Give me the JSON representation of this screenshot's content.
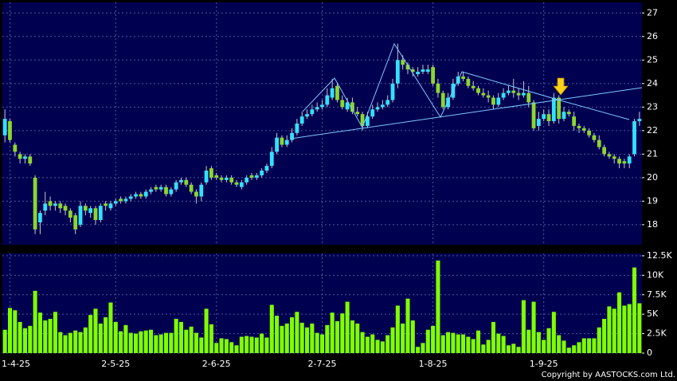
{
  "chart_data": [
    {
      "type": "candlestick",
      "categories": [
        null,
        "1-4-25",
        null,
        null,
        null,
        null,
        null,
        null,
        null,
        null,
        null,
        null,
        null,
        null,
        null,
        null,
        null,
        null,
        null,
        null,
        null,
        null,
        "2-5-25",
        null,
        null,
        null,
        null,
        null,
        null,
        null,
        null,
        null,
        null,
        null,
        null,
        null,
        null,
        null,
        null,
        null,
        null,
        null,
        "2-6-25",
        null,
        null,
        null,
        null,
        null,
        null,
        null,
        null,
        null,
        null,
        null,
        null,
        null,
        null,
        null,
        null,
        null,
        null,
        null,
        null,
        "2-7-25",
        null,
        null,
        null,
        null,
        null,
        null,
        null,
        null,
        null,
        null,
        null,
        null,
        null,
        null,
        null,
        null,
        null,
        null,
        null,
        null,
        null,
        "1-8-25",
        null,
        null,
        null,
        null,
        null,
        null,
        null,
        null,
        null,
        null,
        null,
        null,
        null,
        null,
        null,
        null,
        null,
        null,
        null,
        null,
        null,
        "1-9-25",
        null,
        null,
        null,
        null,
        null,
        null,
        null,
        null,
        null,
        null,
        null,
        null,
        null,
        null,
        null,
        null,
        null,
        null,
        null
      ],
      "open": [
        21.8,
        22.4,
        21.4,
        21.0,
        20.8,
        20.9,
        20.0,
        18.1,
        18.6,
        19.0,
        18.8,
        18.9,
        18.8,
        18.6,
        18.4,
        18.0,
        18.8,
        18.5,
        18.7,
        18.2,
        18.9,
        18.7,
        18.9,
        19.1,
        19.0,
        19.1,
        19.2,
        19.3,
        19.2,
        19.4,
        19.6,
        19.5,
        19.6,
        19.3,
        19.5,
        19.8,
        19.9,
        19.7,
        19.4,
        19.2,
        19.8,
        20.4,
        20.1,
        20.0,
        19.9,
        20.0,
        19.8,
        19.6,
        19.8,
        20.1,
        20.0,
        20.1,
        20.3,
        20.5,
        21.1,
        21.7,
        21.4,
        21.6,
        21.9,
        22.3,
        22.6,
        22.7,
        22.9,
        23.0,
        23.1,
        23.4,
        23.9,
        23.3,
        22.9,
        23.2,
        22.8,
        22.7,
        22.2,
        22.6,
        22.9,
        23.0,
        23.1,
        23.3,
        24.0,
        25.0,
        24.8,
        24.6,
        24.4,
        24.5,
        24.5,
        24.7,
        24.0,
        23.6,
        23.0,
        23.4,
        24.0,
        24.3,
        24.2,
        23.9,
        23.8,
        23.6,
        23.5,
        23.4,
        23.1,
        23.4,
        23.6,
        23.7,
        23.6,
        23.5,
        23.6,
        23.2,
        22.2,
        22.5,
        22.7,
        22.4,
        23.4,
        22.5,
        22.8,
        22.6,
        22.2,
        22.1,
        22.0,
        21.8,
        21.6,
        21.3,
        21.0,
        20.9,
        20.8,
        20.7,
        20.6,
        21.0,
        22.4
      ],
      "high": [
        22.9,
        22.5,
        21.5,
        21.1,
        21.0,
        21.0,
        20.1,
        18.6,
        19.4,
        19.2,
        19.0,
        19.0,
        18.9,
        18.7,
        18.5,
        19.0,
        18.9,
        18.8,
        18.8,
        18.9,
        19.0,
        19.0,
        19.1,
        19.2,
        19.2,
        19.3,
        19.4,
        19.4,
        19.5,
        19.6,
        19.7,
        19.7,
        19.7,
        19.6,
        19.9,
        20.0,
        20.0,
        19.8,
        19.5,
        19.8,
        20.5,
        20.5,
        20.2,
        20.1,
        20.1,
        20.1,
        19.9,
        19.9,
        20.1,
        20.2,
        20.2,
        20.4,
        20.6,
        21.3,
        21.9,
        21.8,
        21.8,
        22.1,
        22.5,
        22.8,
        22.9,
        23.1,
        23.2,
        23.3,
        23.8,
        24.2,
        24.0,
        23.5,
        23.4,
        23.4,
        23.0,
        22.8,
        22.8,
        23.1,
        23.2,
        23.3,
        23.5,
        24.2,
        25.7,
        25.2,
        24.9,
        24.7,
        24.7,
        24.8,
        24.8,
        24.8,
        24.2,
        23.7,
        23.6,
        24.2,
        24.5,
        24.5,
        24.3,
        24.1,
        23.9,
        23.8,
        23.7,
        23.5,
        23.6,
        23.8,
        23.9,
        24.2,
        23.8,
        24.1,
        23.9,
        23.3,
        22.8,
        22.9,
        22.9,
        23.6,
        23.5,
        23.0,
        22.9,
        22.8,
        22.3,
        22.2,
        22.1,
        21.9,
        21.8,
        21.4,
        21.1,
        21.0,
        20.9,
        20.8,
        21.0,
        22.5,
        22.8
      ],
      "low": [
        21.5,
        21.5,
        20.9,
        20.6,
        20.6,
        20.5,
        17.6,
        17.6,
        18.4,
        18.6,
        18.6,
        18.5,
        18.4,
        18.1,
        17.6,
        17.9,
        18.4,
        18.3,
        18.0,
        18.1,
        18.6,
        18.6,
        18.8,
        18.9,
        18.9,
        19.0,
        19.1,
        19.1,
        19.1,
        19.3,
        19.4,
        19.4,
        19.2,
        19.2,
        19.4,
        19.7,
        19.6,
        19.3,
        18.9,
        19.0,
        19.7,
        19.9,
        19.9,
        19.8,
        19.8,
        19.7,
        19.6,
        19.5,
        19.7,
        19.9,
        19.9,
        20.0,
        20.2,
        20.4,
        21.0,
        21.3,
        21.3,
        21.5,
        21.8,
        22.2,
        22.5,
        22.6,
        22.8,
        22.9,
        23.0,
        23.3,
        23.2,
        22.9,
        22.8,
        22.7,
        22.6,
        22.0,
        22.1,
        22.5,
        22.8,
        22.9,
        23.0,
        23.2,
        23.8,
        24.6,
        24.4,
        24.3,
        24.3,
        24.4,
        24.4,
        23.9,
        23.4,
        22.9,
        22.9,
        23.3,
        23.9,
        24.1,
        23.8,
        23.7,
        23.5,
        23.4,
        23.2,
        22.9,
        23.0,
        23.3,
        23.5,
        23.4,
        23.3,
        23.4,
        23.0,
        22.0,
        22.0,
        22.4,
        22.2,
        22.3,
        22.3,
        22.4,
        22.6,
        22.0,
        21.9,
        21.9,
        21.7,
        21.5,
        21.2,
        20.9,
        20.8,
        20.6,
        20.4,
        20.4,
        20.4,
        20.9,
        22.2
      ],
      "close": [
        22.5,
        21.6,
        21.1,
        20.8,
        20.9,
        20.6,
        17.8,
        18.5,
        18.9,
        18.8,
        18.9,
        18.7,
        18.6,
        18.3,
        17.8,
        18.8,
        18.6,
        18.7,
        18.2,
        18.8,
        18.8,
        18.9,
        19.0,
        19.0,
        19.1,
        19.2,
        19.3,
        19.2,
        19.4,
        19.5,
        19.5,
        19.6,
        19.3,
        19.5,
        19.8,
        19.9,
        19.7,
        19.4,
        19.2,
        19.7,
        20.3,
        20.0,
        20.0,
        19.9,
        20.0,
        19.8,
        19.7,
        19.8,
        20.0,
        20.0,
        20.1,
        20.3,
        20.5,
        21.1,
        21.7,
        21.4,
        21.6,
        21.9,
        22.3,
        22.6,
        22.7,
        22.9,
        23.0,
        23.1,
        23.5,
        23.8,
        23.3,
        23.0,
        23.2,
        22.8,
        22.7,
        22.2,
        22.6,
        22.9,
        23.0,
        23.1,
        23.3,
        24.0,
        25.0,
        24.8,
        24.6,
        24.5,
        24.5,
        24.6,
        24.6,
        24.0,
        23.6,
        23.0,
        23.4,
        24.0,
        24.3,
        24.2,
        23.9,
        23.8,
        23.6,
        23.5,
        23.4,
        23.1,
        23.4,
        23.6,
        23.7,
        23.6,
        23.5,
        23.6,
        23.2,
        22.1,
        22.5,
        22.7,
        22.4,
        23.4,
        22.5,
        22.8,
        22.7,
        22.2,
        22.1,
        22.0,
        21.8,
        21.6,
        21.3,
        21.0,
        20.9,
        20.8,
        20.6,
        20.6,
        20.9,
        22.4,
        22.5
      ],
      "up_color": "#33e0ff",
      "down_color": "#8cd630",
      "ylim": [
        17.15,
        27.45
      ],
      "yticks": [
        18,
        19,
        20,
        21,
        22,
        23,
        24,
        25,
        26,
        27
      ],
      "grid": true
    },
    {
      "type": "bar",
      "values": [
        3000,
        5800,
        5500,
        4000,
        3200,
        3500,
        8000,
        5200,
        4200,
        4400,
        5300,
        2700,
        2300,
        2600,
        2900,
        2700,
        3300,
        4900,
        5700,
        3800,
        4600,
        6500,
        4000,
        2800,
        3600,
        2600,
        2500,
        2800,
        2900,
        3000,
        2300,
        2400,
        2600,
        2600,
        4400,
        4000,
        3000,
        3400,
        2600,
        2000,
        5700,
        3700,
        1300,
        1900,
        1800,
        1400,
        1000,
        2100,
        2200,
        2100,
        2000,
        2500,
        2000,
        6200,
        4800,
        3500,
        3800,
        4600,
        5300,
        3900,
        3300,
        3800,
        2600,
        2400,
        3600,
        5200,
        4100,
        5100,
        6600,
        4200,
        3800,
        2700,
        2100,
        2400,
        1700,
        1500,
        2300,
        3300,
        6100,
        3800,
        7000,
        4200,
        800,
        1300,
        3000,
        3500,
        11900,
        2300,
        2700,
        2600,
        2400,
        2400,
        2100,
        1800,
        2900,
        1100,
        1700,
        4000,
        2500,
        2200,
        1000,
        1200,
        800,
        6800,
        3000,
        6600,
        2700,
        1700,
        3200,
        5300,
        2300,
        1600,
        700,
        1000,
        1400,
        1900,
        1900,
        1900,
        3300,
        4400,
        6000,
        5700,
        7800,
        6100,
        6300,
        11000,
        6400
      ],
      "color": "#80ff00",
      "ylim": [
        0,
        12800
      ],
      "yticks": [
        0,
        {
          "value": 2500,
          "label": "2.5K"
        },
        {
          "value": 5000,
          "label": "5K"
        },
        {
          "value": 7500,
          "label": "7.5K"
        },
        {
          "value": 10000,
          "label": "10K"
        },
        {
          "value": 12500,
          "label": "12.5K"
        }
      ],
      "grid": true
    }
  ],
  "copyright": "Copyright by AASTOCKS.com Ltd."
}
